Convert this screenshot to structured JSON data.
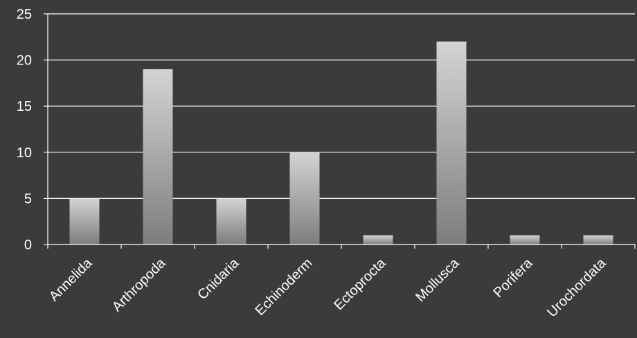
{
  "chart_data": {
    "type": "bar",
    "title": "",
    "xlabel": "",
    "ylabel": "",
    "categories": [
      "Annelida",
      "Arthropoda",
      "Cnidaria",
      "Echinoderm",
      "Ectoprocta",
      "Mollusca",
      "Porifera",
      "Urochordata"
    ],
    "values": [
      5,
      19,
      5,
      10,
      1,
      22,
      1,
      1
    ],
    "ylim": [
      0,
      25
    ],
    "yticks": [
      0,
      5,
      10,
      15,
      20,
      25
    ],
    "grid": true,
    "legend": "none"
  },
  "colors": {
    "background": "#3b3b3b",
    "bar_top": "#d4d4d4",
    "bar_bottom": "#7d7d7d",
    "text": "#ffffff",
    "grid": "#ffffff"
  }
}
